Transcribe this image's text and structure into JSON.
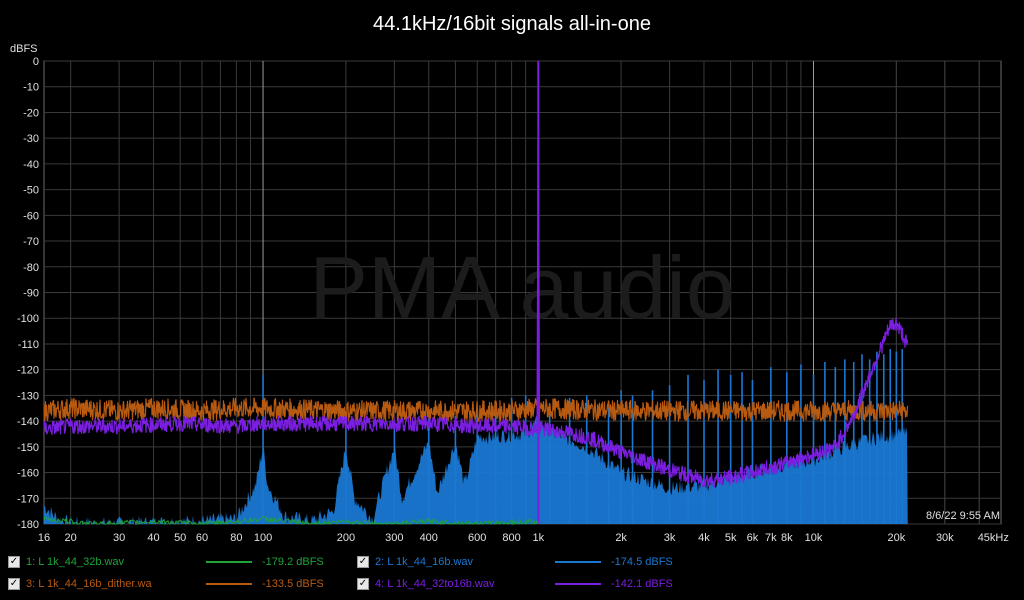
{
  "chart_data": {
    "type": "line",
    "title": "44.1kHz/16bit signals all-in-one",
    "ylabel": "dBFS",
    "xlabel": "",
    "xscale": "log",
    "xlim": [
      16,
      48000
    ],
    "ylim": [
      -180,
      0
    ],
    "grid": true,
    "yticks": [
      0,
      -10,
      -20,
      -30,
      -40,
      -50,
      -60,
      -70,
      -80,
      -90,
      -100,
      -110,
      -120,
      -130,
      -140,
      -150,
      -160,
      -170,
      -180
    ],
    "xticks": [
      {
        "value": 16,
        "label": "16"
      },
      {
        "value": 20,
        "label": "20"
      },
      {
        "value": 30,
        "label": "30"
      },
      {
        "value": 40,
        "label": "40"
      },
      {
        "value": 50,
        "label": "50"
      },
      {
        "value": 60,
        "label": "60"
      },
      {
        "value": 80,
        "label": "80"
      },
      {
        "value": 100,
        "label": "100"
      },
      {
        "value": 200,
        "label": "200"
      },
      {
        "value": 300,
        "label": "300"
      },
      {
        "value": 400,
        "label": "400"
      },
      {
        "value": 600,
        "label": "600"
      },
      {
        "value": 800,
        "label": "800"
      },
      {
        "value": 1000,
        "label": "1k"
      },
      {
        "value": 2000,
        "label": "2k"
      },
      {
        "value": 3000,
        "label": "3k"
      },
      {
        "value": 4000,
        "label": "4k"
      },
      {
        "value": 5000,
        "label": "5k"
      },
      {
        "value": 6000,
        "label": "6k"
      },
      {
        "value": 7000,
        "label": "7k"
      },
      {
        "value": 8000,
        "label": "8k"
      },
      {
        "value": 10000,
        "label": "10k"
      },
      {
        "value": 20000,
        "label": "20k"
      },
      {
        "value": 30000,
        "label": "30k"
      },
      {
        "value": 45000,
        "label": "45kHz"
      }
    ],
    "watermark": "PMA audio",
    "timestamp": "8/6/22 9:55 AM",
    "series": [
      {
        "name": "1: L 1k_44_32b.wav",
        "value_label": "-179.2 dBFS",
        "color": "#1fa33a",
        "style": "line",
        "points": [
          [
            16,
            -178
          ],
          [
            25,
            -180
          ],
          [
            40,
            -179
          ],
          [
            60,
            -180
          ],
          [
            80,
            -179
          ],
          [
            100,
            -178
          ],
          [
            150,
            -180
          ],
          [
            200,
            -179
          ],
          [
            300,
            -180
          ],
          [
            400,
            -179
          ],
          [
            600,
            -180
          ],
          [
            1000,
            -179
          ]
        ]
      },
      {
        "name": "2: L 1k_44_16b.wav",
        "value_label": "-174.5 dBFS",
        "color": "#1a78d2",
        "style": "area",
        "points": [
          [
            16,
            -173
          ],
          [
            18,
            -178
          ],
          [
            20,
            -180
          ],
          [
            30,
            -180
          ],
          [
            60,
            -179
          ],
          [
            80,
            -178
          ],
          [
            94,
            -165
          ],
          [
            100,
            -150
          ],
          [
            104,
            -165
          ],
          [
            120,
            -177
          ],
          [
            150,
            -179
          ],
          [
            180,
            -175
          ],
          [
            200,
            -150
          ],
          [
            215,
            -170
          ],
          [
            250,
            -178
          ],
          [
            300,
            -150
          ],
          [
            320,
            -170
          ],
          [
            400,
            -148
          ],
          [
            430,
            -168
          ],
          [
            500,
            -148
          ],
          [
            540,
            -165
          ],
          [
            600,
            -146
          ],
          [
            700,
            -146
          ],
          [
            800,
            -145
          ],
          [
            900,
            -145
          ],
          [
            1000,
            -140
          ],
          [
            1100,
            -144
          ],
          [
            1500,
            -150
          ],
          [
            2000,
            -160
          ],
          [
            3000,
            -166
          ],
          [
            4000,
            -165
          ],
          [
            5000,
            -162
          ],
          [
            7000,
            -158
          ],
          [
            10000,
            -155
          ],
          [
            13000,
            -150
          ],
          [
            16000,
            -147
          ],
          [
            20000,
            -145
          ],
          [
            22000,
            -145
          ]
        ],
        "spikes": [
          [
            100,
            -122
          ],
          [
            200,
            -138
          ],
          [
            300,
            -141
          ],
          [
            400,
            -139
          ],
          [
            500,
            -138
          ],
          [
            600,
            -136
          ],
          [
            700,
            -133
          ],
          [
            800,
            -131
          ],
          [
            900,
            -130
          ],
          [
            1100,
            -133
          ],
          [
            1300,
            -131
          ],
          [
            1500,
            -130
          ],
          [
            1800,
            -132
          ],
          [
            2000,
            -128
          ],
          [
            2200,
            -130
          ],
          [
            2600,
            -128
          ],
          [
            3000,
            -126
          ],
          [
            3500,
            -122
          ],
          [
            4000,
            -124
          ],
          [
            4500,
            -120
          ],
          [
            5000,
            -122
          ],
          [
            5500,
            -121
          ],
          [
            6000,
            -124
          ],
          [
            7000,
            -119
          ],
          [
            8000,
            -121
          ],
          [
            9000,
            -118
          ],
          [
            10000,
            -122
          ],
          [
            11000,
            -117
          ],
          [
            12000,
            -119
          ],
          [
            13000,
            -116
          ],
          [
            14000,
            -117
          ],
          [
            15000,
            -114
          ],
          [
            16000,
            -116
          ],
          [
            17000,
            -113
          ],
          [
            18000,
            -114
          ],
          [
            19000,
            -112
          ],
          [
            20000,
            -113
          ],
          [
            21000,
            -112
          ]
        ]
      },
      {
        "name": "3: L 1k_44_16b_dither.wa",
        "value_label": "-133.5 dBFS",
        "color": "#b75a12",
        "style": "band",
        "points": [
          [
            16,
            -136
          ],
          [
            20,
            -135
          ],
          [
            30,
            -136
          ],
          [
            40,
            -135
          ],
          [
            60,
            -136
          ],
          [
            80,
            -135
          ],
          [
            100,
            -135
          ],
          [
            200,
            -136
          ],
          [
            300,
            -136
          ],
          [
            500,
            -136
          ],
          [
            800,
            -136
          ],
          [
            1000,
            -135
          ],
          [
            2000,
            -136
          ],
          [
            4000,
            -136
          ],
          [
            8000,
            -136
          ],
          [
            15000,
            -136
          ],
          [
            22000,
            -136
          ]
        ],
        "spread": 4
      },
      {
        "name": "4: L 1k_44_32to16b.wav",
        "value_label": "-142.1 dBFS",
        "color": "#7a1ee0",
        "style": "band",
        "points": [
          [
            16,
            -143
          ],
          [
            20,
            -142
          ],
          [
            30,
            -142
          ],
          [
            50,
            -141
          ],
          [
            80,
            -142
          ],
          [
            100,
            -141
          ],
          [
            200,
            -141
          ],
          [
            400,
            -141
          ],
          [
            600,
            -142
          ],
          [
            800,
            -142
          ],
          [
            990,
            -143
          ],
          [
            1000,
            0
          ],
          [
            1010,
            -143
          ],
          [
            1200,
            -144
          ],
          [
            1500,
            -146
          ],
          [
            2000,
            -152
          ],
          [
            3000,
            -159
          ],
          [
            4000,
            -163
          ],
          [
            5000,
            -162
          ],
          [
            7000,
            -158
          ],
          [
            10000,
            -153
          ],
          [
            12000,
            -150
          ],
          [
            14000,
            -138
          ],
          [
            16000,
            -122
          ],
          [
            18000,
            -109
          ],
          [
            19000,
            -103
          ],
          [
            20000,
            -102
          ],
          [
            21000,
            -106
          ],
          [
            22000,
            -111
          ]
        ],
        "spread": 3
      }
    ]
  },
  "legend": [
    {
      "checked": true,
      "label": "1: L 1k_44_32b.wav",
      "value": "-179.2 dBFS",
      "color": "#1fa33a"
    },
    {
      "checked": true,
      "label": "2: L 1k_44_16b.wav",
      "value": "-174.5 dBFS",
      "color": "#1a78d2"
    },
    {
      "checked": true,
      "label": "3: L 1k_44_16b_dither.wa",
      "value": "-133.5 dBFS",
      "color": "#b75a12"
    },
    {
      "checked": true,
      "label": "4: L 1k_44_32to16b.wav",
      "value": "-142.1 dBFS",
      "color": "#7a1ee0"
    }
  ]
}
